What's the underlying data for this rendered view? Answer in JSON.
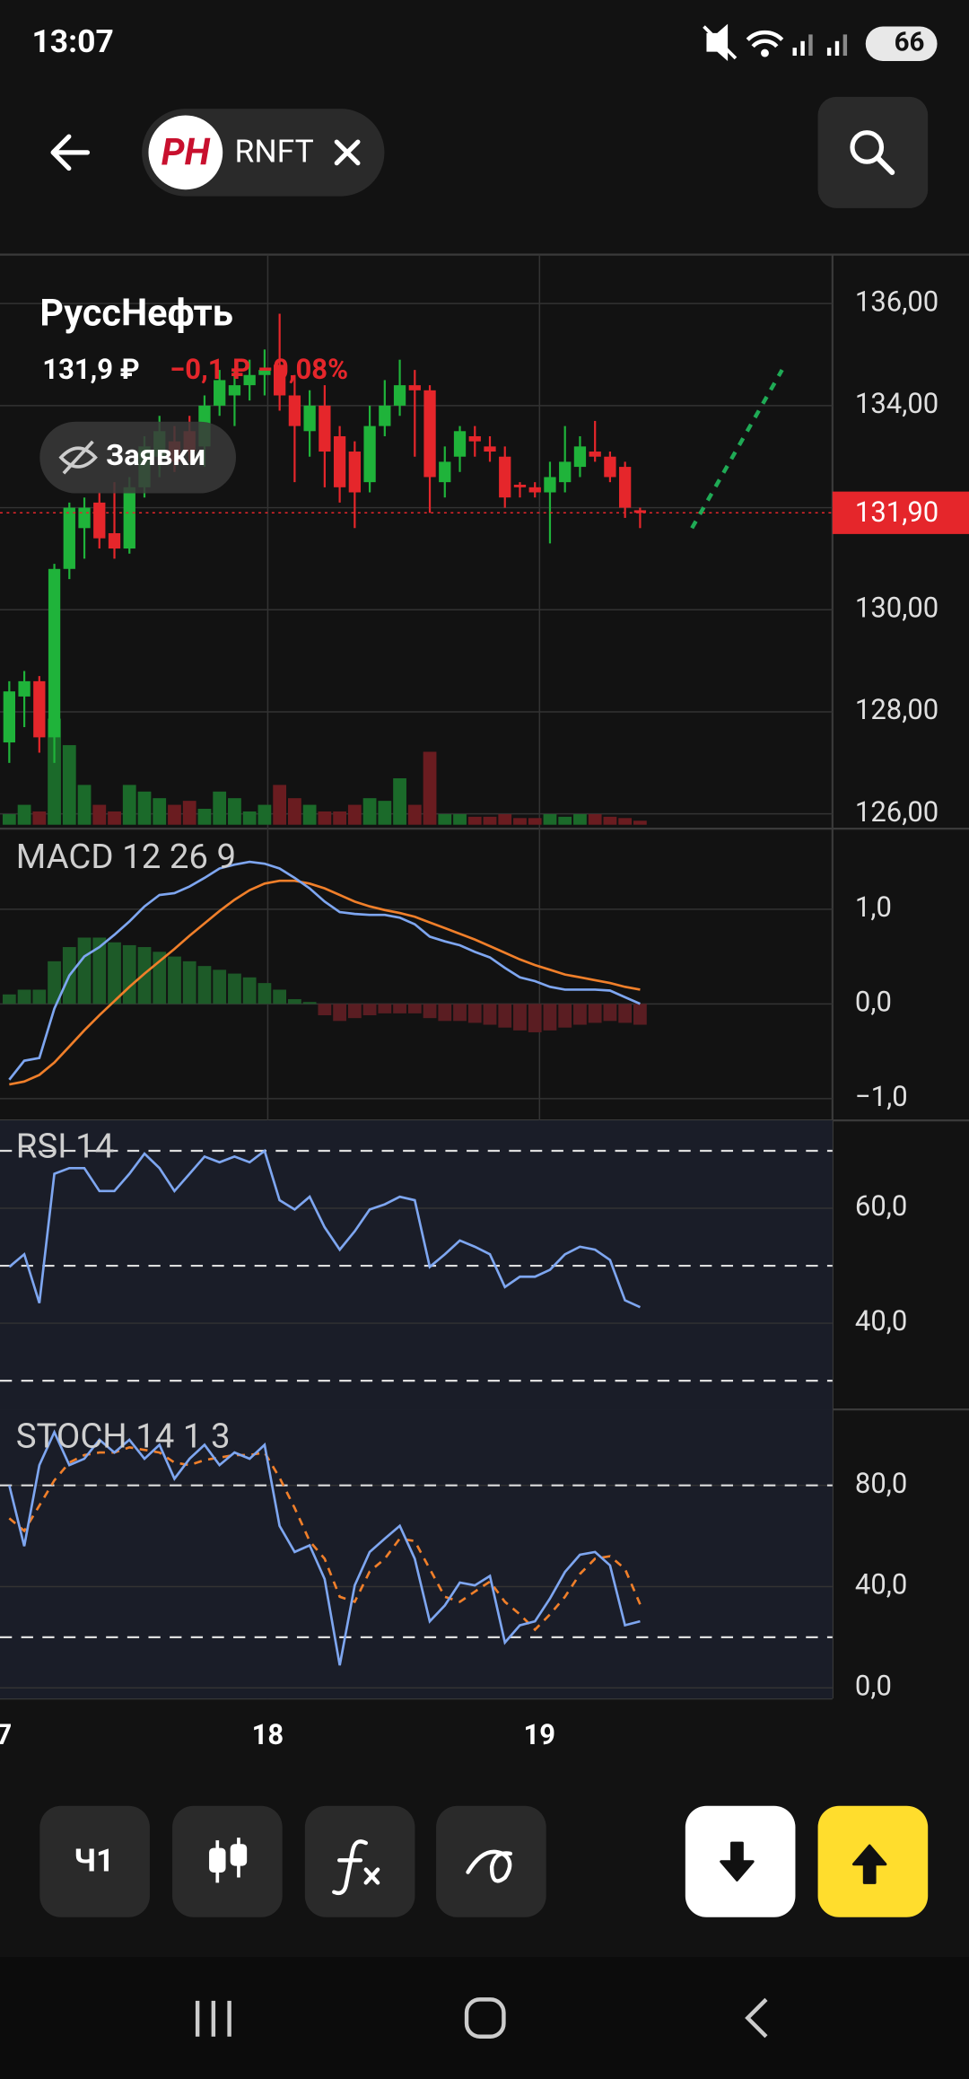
{
  "status_bar": {
    "time": "13:07",
    "battery": "66"
  },
  "header": {
    "logo": "PH",
    "ticker": "RNFT"
  },
  "instrument": {
    "name": "РуссНефть",
    "price": "131,9 ₽",
    "change": "−0,1 ₽ −0,08%"
  },
  "orders_button": "Заявки",
  "main_chart": {
    "ylim": [
      125.71,
      136.96
    ],
    "yticks": [
      {
        "value": 126,
        "label": "126,00"
      },
      {
        "value": 128,
        "label": "128,00"
      },
      {
        "value": 130,
        "label": "130,00"
      },
      {
        "value": 132,
        "label": "132,00"
      },
      {
        "value": 134,
        "label": "134,00"
      },
      {
        "value": 136,
        "label": "136,00"
      }
    ],
    "last_price": {
      "value": 131.9,
      "label": "131,90"
    },
    "trend_line": [
      131.6,
      134.7
    ],
    "up_color": "#1fb33a",
    "down_color": "#e5262b",
    "candles": [
      {
        "open": 127.4,
        "high": 128.6,
        "low": 127.0,
        "close": 128.4
      },
      {
        "open": 128.3,
        "high": 128.8,
        "low": 127.7,
        "close": 128.6
      },
      {
        "open": 128.6,
        "high": 128.7,
        "low": 127.2,
        "close": 127.5
      },
      {
        "open": 127.5,
        "high": 130.9,
        "low": 127.0,
        "close": 130.8
      },
      {
        "open": 130.8,
        "high": 132.1,
        "low": 130.6,
        "close": 132.0
      },
      {
        "open": 131.6,
        "high": 132.2,
        "low": 131.0,
        "close": 132.0
      },
      {
        "open": 132.1,
        "high": 132.3,
        "low": 131.2,
        "close": 131.4
      },
      {
        "open": 131.5,
        "high": 132.5,
        "low": 131.0,
        "close": 131.2
      },
      {
        "open": 131.2,
        "high": 132.6,
        "low": 131.1,
        "close": 132.4
      },
      {
        "open": 132.4,
        "high": 133.4,
        "low": 132.2,
        "close": 133.2
      },
      {
        "open": 133.0,
        "high": 133.8,
        "low": 132.6,
        "close": 133.5
      },
      {
        "open": 133.3,
        "high": 133.6,
        "low": 132.7,
        "close": 132.9
      },
      {
        "open": 133.5,
        "high": 133.8,
        "low": 132.9,
        "close": 133.1
      },
      {
        "open": 133.2,
        "high": 134.2,
        "low": 132.8,
        "close": 134.0
      },
      {
        "open": 134.0,
        "high": 134.7,
        "low": 133.8,
        "close": 134.5
      },
      {
        "open": 134.2,
        "high": 134.7,
        "low": 133.6,
        "close": 134.4
      },
      {
        "open": 134.4,
        "high": 134.9,
        "low": 134.1,
        "close": 134.6
      },
      {
        "open": 134.6,
        "high": 135.1,
        "low": 134.2,
        "close": 134.7
      },
      {
        "open": 134.8,
        "high": 135.8,
        "low": 133.9,
        "close": 134.2
      },
      {
        "open": 134.2,
        "high": 134.6,
        "low": 132.5,
        "close": 133.6
      },
      {
        "open": 133.5,
        "high": 134.3,
        "low": 133.0,
        "close": 134.0
      },
      {
        "open": 134.0,
        "high": 134.4,
        "low": 132.4,
        "close": 133.1
      },
      {
        "open": 133.4,
        "high": 133.6,
        "low": 132.1,
        "close": 132.4
      },
      {
        "open": 133.1,
        "high": 133.3,
        "low": 131.6,
        "close": 132.3
      },
      {
        "open": 132.5,
        "high": 134.0,
        "low": 132.3,
        "close": 133.6
      },
      {
        "open": 133.6,
        "high": 134.5,
        "low": 133.4,
        "close": 134.0
      },
      {
        "open": 134.0,
        "high": 134.9,
        "low": 133.8,
        "close": 134.4
      },
      {
        "open": 134.4,
        "high": 134.7,
        "low": 133.0,
        "close": 134.3
      },
      {
        "open": 134.3,
        "high": 134.4,
        "low": 131.9,
        "close": 132.6
      },
      {
        "open": 132.5,
        "high": 133.2,
        "low": 132.2,
        "close": 132.9
      },
      {
        "open": 133.0,
        "high": 133.6,
        "low": 132.7,
        "close": 133.5
      },
      {
        "open": 133.4,
        "high": 133.6,
        "low": 133.0,
        "close": 133.3
      },
      {
        "open": 133.2,
        "high": 133.4,
        "low": 132.9,
        "close": 133.1
      },
      {
        "open": 133.0,
        "high": 133.2,
        "low": 132.0,
        "close": 132.2
      },
      {
        "open": 132.45,
        "high": 132.5,
        "low": 132.2,
        "close": 132.4
      },
      {
        "open": 132.4,
        "high": 132.5,
        "low": 132.2,
        "close": 132.3
      },
      {
        "open": 132.3,
        "high": 132.9,
        "low": 131.3,
        "close": 132.6
      },
      {
        "open": 132.5,
        "high": 133.6,
        "low": 132.3,
        "close": 132.9
      },
      {
        "open": 132.8,
        "high": 133.4,
        "low": 132.6,
        "close": 133.2
      },
      {
        "open": 133.1,
        "high": 133.7,
        "low": 132.9,
        "close": 133.0
      },
      {
        "open": 133.0,
        "high": 133.1,
        "low": 132.5,
        "close": 132.6
      },
      {
        "open": 132.8,
        "high": 132.9,
        "low": 131.8,
        "close": 132.0
      },
      {
        "open": 131.95,
        "high": 132.0,
        "low": 131.6,
        "close": 131.9
      }
    ],
    "volumes": [
      8,
      15,
      10,
      80,
      60,
      30,
      15,
      10,
      30,
      25,
      20,
      15,
      18,
      12,
      25,
      20,
      10,
      15,
      30,
      20,
      15,
      10,
      10,
      15,
      20,
      18,
      35,
      15,
      55,
      8,
      8,
      6,
      6,
      8,
      5,
      5,
      8,
      6,
      8,
      8,
      6,
      5,
      3
    ]
  },
  "macd": {
    "title": "MACD 12 26 9",
    "ylim": [
      -1.23,
      1.85
    ],
    "yticks": [
      {
        "value": 1,
        "label": "1,0"
      },
      {
        "value": 0,
        "label": "0,0"
      },
      {
        "value": -1,
        "label": "−1,0"
      }
    ],
    "macd_color": "#7ea6f0",
    "signal_color": "#f07f2a",
    "macd": [
      -0.8,
      -0.6,
      -0.57,
      -0.05,
      0.3,
      0.5,
      0.6,
      0.73,
      0.87,
      1.03,
      1.15,
      1.17,
      1.24,
      1.33,
      1.43,
      1.47,
      1.5,
      1.48,
      1.43,
      1.33,
      1.22,
      1.08,
      0.97,
      0.95,
      0.94,
      0.94,
      0.91,
      0.84,
      0.71,
      0.66,
      0.62,
      0.55,
      0.49,
      0.38,
      0.28,
      0.24,
      0.18,
      0.15,
      0.15,
      0.15,
      0.14,
      0.07,
      0.0
    ],
    "signal": [
      -0.85,
      -0.82,
      -0.75,
      -0.62,
      -0.45,
      -0.28,
      -0.12,
      0.03,
      0.18,
      0.32,
      0.45,
      0.58,
      0.72,
      0.85,
      0.98,
      1.1,
      1.2,
      1.27,
      1.3,
      1.3,
      1.27,
      1.22,
      1.15,
      1.08,
      1.03,
      0.99,
      0.96,
      0.92,
      0.86,
      0.8,
      0.74,
      0.68,
      0.61,
      0.54,
      0.47,
      0.41,
      0.36,
      0.31,
      0.28,
      0.25,
      0.22,
      0.18,
      0.15
    ],
    "histogram": [
      0.1,
      0.15,
      0.15,
      0.45,
      0.6,
      0.7,
      0.7,
      0.65,
      0.62,
      0.6,
      0.55,
      0.5,
      0.45,
      0.4,
      0.36,
      0.32,
      0.28,
      0.22,
      0.15,
      0.05,
      0.02,
      -0.12,
      -0.18,
      -0.15,
      -0.12,
      -0.1,
      -0.1,
      -0.1,
      -0.15,
      -0.18,
      -0.18,
      -0.2,
      -0.22,
      -0.25,
      -0.28,
      -0.3,
      -0.28,
      -0.25,
      -0.22,
      -0.2,
      -0.18,
      -0.2,
      -0.22
    ]
  },
  "rsi": {
    "title": "RSI 14",
    "ylim": [
      25,
      75.3
    ],
    "color": "#7ea6f0",
    "yticks": [
      {
        "value": 60,
        "label": "60,0"
      },
      {
        "value": 40,
        "label": "40,0"
      }
    ],
    "levels": [
      70,
      50,
      30
    ],
    "values": [
      49.8,
      52,
      43.5,
      66,
      67,
      67,
      63,
      63,
      66,
      69.5,
      67,
      63,
      66,
      69,
      68,
      69,
      68,
      70,
      61.4,
      59.8,
      62,
      56.7,
      52.8,
      56,
      59.8,
      60.7,
      62,
      61.4,
      49.8,
      52,
      54.4,
      53.3,
      52,
      46.3,
      48.1,
      48.1,
      49.3,
      52,
      53.3,
      52.8,
      51,
      44,
      42.8
    ]
  },
  "stoch": {
    "title": "STOCH 14 1 3",
    "ylim": [
      -4.2,
      110
    ],
    "k_color": "#7ea6f0",
    "d_color": "#f07f2a",
    "yticks": [
      {
        "value": 80,
        "label": "80,0"
      },
      {
        "value": 40,
        "label": "40,0"
      },
      {
        "value": 0,
        "label": "0,0"
      }
    ],
    "levels": [
      80,
      20
    ],
    "k": [
      80,
      56,
      88,
      101,
      88,
      90.5,
      98,
      93,
      98,
      90.5,
      96,
      82.6,
      90.5,
      96,
      88,
      93,
      90.5,
      96,
      64,
      53.7,
      56.3,
      43,
      8.9,
      40.5,
      53.7,
      59,
      64,
      51,
      26.3,
      32.6,
      41.6,
      40.5,
      44.2,
      17.9,
      24.7,
      26.3,
      35.3,
      45.8,
      52.6,
      53.7,
      48.4,
      24.7,
      26.3
    ],
    "d": [
      67,
      62,
      72,
      82,
      89,
      92,
      93,
      93,
      95,
      94,
      93,
      89,
      88,
      90,
      91,
      92,
      92,
      93,
      83,
      71,
      58,
      51,
      36,
      34,
      46,
      51,
      59,
      58,
      47,
      36,
      34,
      38,
      42,
      34,
      29,
      23,
      29,
      36,
      45,
      51,
      52,
      47,
      33
    ]
  },
  "x_labels": [
    "7",
    "18",
    "19"
  ],
  "toolbar": {
    "interval": "Ч1"
  }
}
